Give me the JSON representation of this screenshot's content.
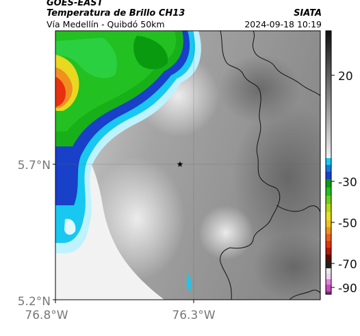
{
  "header": {
    "satellite": "GOES-EAST",
    "product": "Temperatura de Brillo CH13",
    "institution": "SIATA",
    "region": "Vía Medellín - Quibdó 50km",
    "datetime": "2024-09-18 10:19"
  },
  "map": {
    "lat_labels": [
      "5.7°N",
      "5.2°N"
    ],
    "lon_labels": [
      "76.8°W",
      "76.3°W"
    ],
    "marker": "star-marker"
  },
  "colorbar": {
    "tick_labels": [
      "20",
      "-30",
      "-50",
      "-70",
      "-90"
    ]
  },
  "colors": {
    "cloud_cold": "#e83010",
    "cloud_green": "#18b018",
    "cloud_blue": "#1840c8",
    "cloud_cyan": "#18c8f0",
    "ground_gray": "#9a9a9a"
  }
}
